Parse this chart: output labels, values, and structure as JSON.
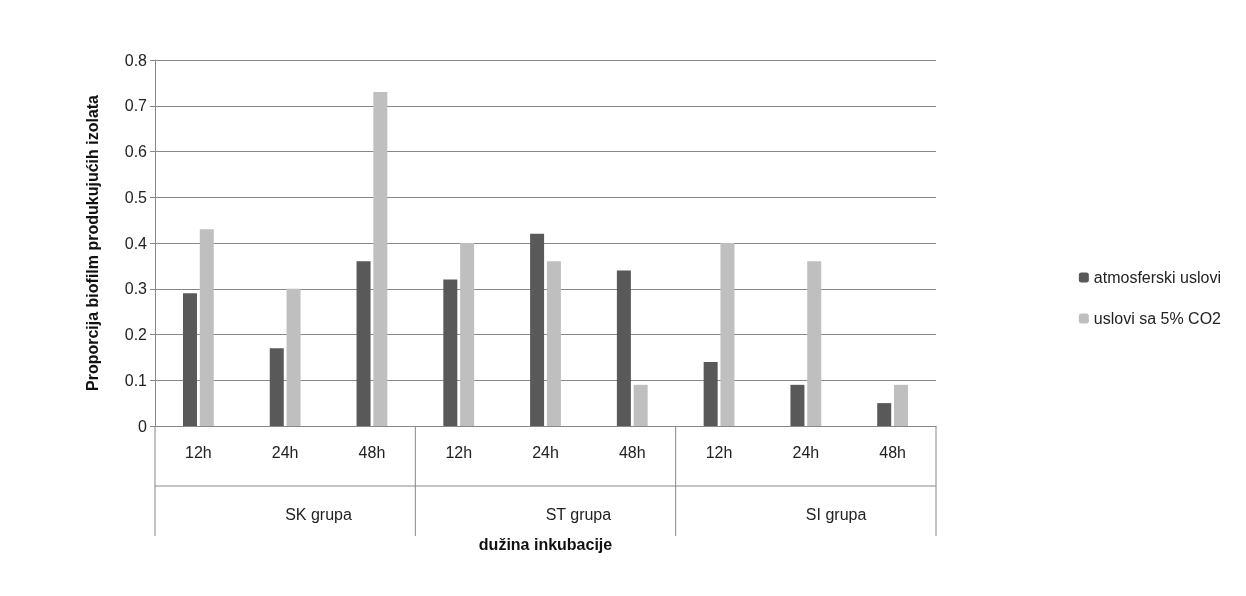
{
  "chart_data": {
    "type": "bar",
    "xlabel": "dužina inkubacije",
    "ylabel": "Proporcija biofilm produkujućih izolata",
    "categories": [
      "12h",
      "24h",
      "48h",
      "12h",
      "24h",
      "48h",
      "12h",
      "24h",
      "48h"
    ],
    "series": [
      {
        "name": "atmosferski uslovi",
        "color": "#595959",
        "values": [
          0.29,
          0.17,
          0.36,
          0.32,
          0.42,
          0.34,
          0.14,
          0.09,
          0.05
        ]
      },
      {
        "name": "uslovi sa 5% CO2",
        "color": "#bfbfbf",
        "values": [
          0.43,
          0.3,
          0.73,
          0.4,
          0.36,
          0.09,
          0.4,
          0.36,
          0.09
        ]
      }
    ],
    "annotations": [
      "SK grupa",
      "ST grupa",
      "SI grupa"
    ],
    "ylim": [
      0,
      0.8
    ],
    "yticks": [
      0,
      0.1,
      0.2,
      0.3,
      0.4,
      0.5,
      0.6,
      0.7,
      0.8
    ],
    "grid": "y",
    "legend": "right"
  }
}
